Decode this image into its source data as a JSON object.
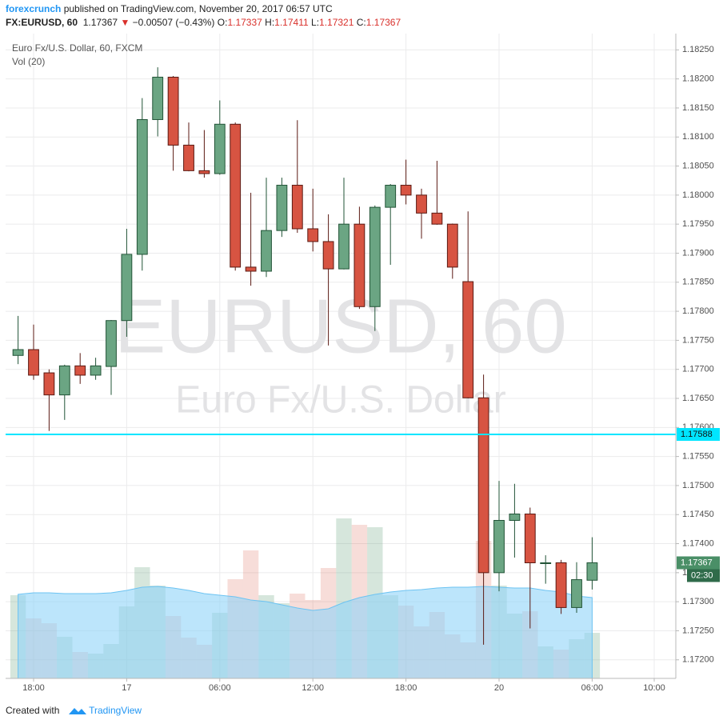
{
  "header": {
    "publisher": "forexcrunch",
    "published": "published on TradingView.com, November 20, 2017 06:57 UTC",
    "symbol": "FX:EURUSD, 60",
    "last": "1.17367",
    "arrow": "▼",
    "change": "−0.00507 (−0.43%)",
    "open_label": "O:",
    "open": "1.17337",
    "high_label": "H:",
    "high": "1.17411",
    "low_label": "L:",
    "low": "1.17321",
    "close_label": "C:",
    "close": "1.17367"
  },
  "chart_data": {
    "type": "candlestick",
    "title": "Euro Fx/U.S. Dollar, 60, FXCM",
    "watermark": "EURUSD, 60",
    "watermark_sub": "Euro Fx/U.S. Dollar",
    "up_color": "#6ba583",
    "down_color": "#d75442",
    "categories": [
      null,
      "18:00",
      null,
      null,
      null,
      null,
      null,
      "17",
      null,
      null,
      null,
      null,
      null,
      "06:00",
      null,
      null,
      null,
      null,
      null,
      "12:00",
      null,
      null,
      null,
      null,
      null,
      "18:00",
      null,
      null,
      null,
      null,
      null,
      "20",
      null,
      null,
      null,
      null,
      null,
      "06:00",
      null,
      null,
      null,
      "10:00",
      null
    ],
    "open": [
      1.17724,
      1.17734,
      1.17694,
      1.17656,
      1.17706,
      1.1769,
      1.17705,
      1.17784,
      1.17898,
      1.1813,
      1.18203,
      1.18086,
      1.18042,
      1.18037,
      1.18122,
      1.17876,
      1.17869,
      1.17939,
      1.18017,
      1.17942,
      1.1792,
      1.17873,
      1.1795,
      1.17808,
      1.17979,
      1.18017,
      1.18,
      1.17969,
      1.1795,
      1.17851,
      1.17651,
      1.1735,
      1.1744,
      1.17451,
      1.17367,
      1.17367,
      1.1729,
      1.17337,
      null,
      null,
      null,
      null,
      null
    ],
    "high": [
      1.17792,
      1.17777,
      1.177,
      1.17708,
      1.17728,
      1.1772,
      1.17785,
      1.17942,
      1.18167,
      1.1822,
      1.18205,
      1.18125,
      1.18112,
      1.18163,
      1.18125,
      1.18004,
      1.1803,
      1.1803,
      1.18129,
      1.18011,
      1.17967,
      1.1803,
      1.1798,
      1.17982,
      1.18019,
      1.18061,
      1.18011,
      1.18059,
      1.17951,
      1.17972,
      1.17691,
      1.17508,
      1.17503,
      1.17462,
      1.1738,
      1.17372,
      1.17368,
      1.17411,
      null,
      null,
      null,
      null,
      null
    ],
    "low": [
      1.17709,
      1.17682,
      1.17594,
      1.17613,
      1.17675,
      1.17682,
      1.17656,
      1.17756,
      1.1787,
      1.18101,
      1.18042,
      1.18041,
      1.1803,
      1.18035,
      1.1787,
      1.17844,
      1.17859,
      1.17928,
      1.17935,
      1.17903,
      1.17741,
      1.17872,
      1.17804,
      1.17766,
      1.1788,
      1.17984,
      1.17925,
      1.17949,
      1.17856,
      1.1765,
      1.17226,
      1.17318,
      1.17376,
      1.17254,
      1.17331,
      1.17279,
      1.17281,
      1.17321,
      null,
      null,
      null,
      null,
      null
    ],
    "close": [
      1.17734,
      1.1769,
      1.17656,
      1.17706,
      1.1769,
      1.17706,
      1.17784,
      1.17898,
      1.1813,
      1.18203,
      1.18086,
      1.18042,
      1.18037,
      1.18122,
      1.17876,
      1.17869,
      1.17939,
      1.18017,
      1.17942,
      1.1792,
      1.17873,
      1.1795,
      1.17808,
      1.17979,
      1.18017,
      1.18,
      1.17969,
      1.1795,
      1.17876,
      1.17651,
      1.1735,
      1.1744,
      1.17451,
      1.17367,
      1.17367,
      1.1729,
      1.17338,
      1.17367,
      null,
      null,
      null,
      null,
      null
    ],
    "volume": {
      "name": "Vol (20)",
      "color": "#8fd3f8",
      "values": [
        104,
        75,
        69,
        52,
        33,
        31,
        43,
        90,
        139,
        116,
        78,
        51,
        42,
        82,
        124,
        160,
        104,
        94,
        106,
        98,
        138,
        200,
        192,
        189,
        104,
        91,
        65,
        83,
        55,
        45,
        172,
        116,
        81,
        84,
        40,
        36,
        49,
        57,
        null,
        null,
        null,
        null,
        null
      ],
      "ma": [
        105,
        107,
        107,
        106,
        106,
        106,
        107,
        110,
        114,
        115,
        113,
        110,
        106,
        104,
        102,
        98,
        96,
        92,
        88,
        85,
        87,
        95,
        101,
        105,
        108,
        110,
        111,
        113,
        114,
        114,
        115,
        114,
        113,
        113,
        110,
        108,
        103,
        101,
        null,
        null,
        null,
        null,
        null
      ]
    },
    "ylim": [
      1.17168,
      1.18278
    ],
    "yticks": [
      {
        "value": 1.172,
        "label": "1.17200"
      },
      {
        "value": 1.1725,
        "label": "1.17250"
      },
      {
        "value": 1.173,
        "label": "1.17300"
      },
      {
        "value": 1.1735,
        "label": "1.17350"
      },
      {
        "value": 1.174,
        "label": "1.17400"
      },
      {
        "value": 1.1745,
        "label": "1.17450"
      },
      {
        "value": 1.175,
        "label": "1.17500"
      },
      {
        "value": 1.1755,
        "label": "1.17550"
      },
      {
        "value": 1.176,
        "label": "1.17600"
      },
      {
        "value": 1.1765,
        "label": "1.17650"
      },
      {
        "value": 1.177,
        "label": "1.17700"
      },
      {
        "value": 1.1775,
        "label": "1.17750"
      },
      {
        "value": 1.178,
        "label": "1.17800"
      },
      {
        "value": 1.1785,
        "label": "1.17850"
      },
      {
        "value": 1.179,
        "label": "1.17900"
      },
      {
        "value": 1.1795,
        "label": "1.17950"
      },
      {
        "value": 1.18,
        "label": "1.18000"
      },
      {
        "value": 1.1805,
        "label": "1.18050"
      },
      {
        "value": 1.181,
        "label": "1.18100"
      },
      {
        "value": 1.1815,
        "label": "1.18150"
      },
      {
        "value": 1.182,
        "label": "1.18200"
      },
      {
        "value": 1.1825,
        "label": "1.18250"
      }
    ],
    "grid": true,
    "hline": {
      "value": 1.17588,
      "label": "1.17588",
      "color": "#00e5ff"
    },
    "last_price": {
      "value": 1.17367,
      "label": "1.17367",
      "countdown": "02:30",
      "color": "#4a8f67"
    }
  },
  "footer": {
    "created": "Created with",
    "brand": "TradingView"
  }
}
